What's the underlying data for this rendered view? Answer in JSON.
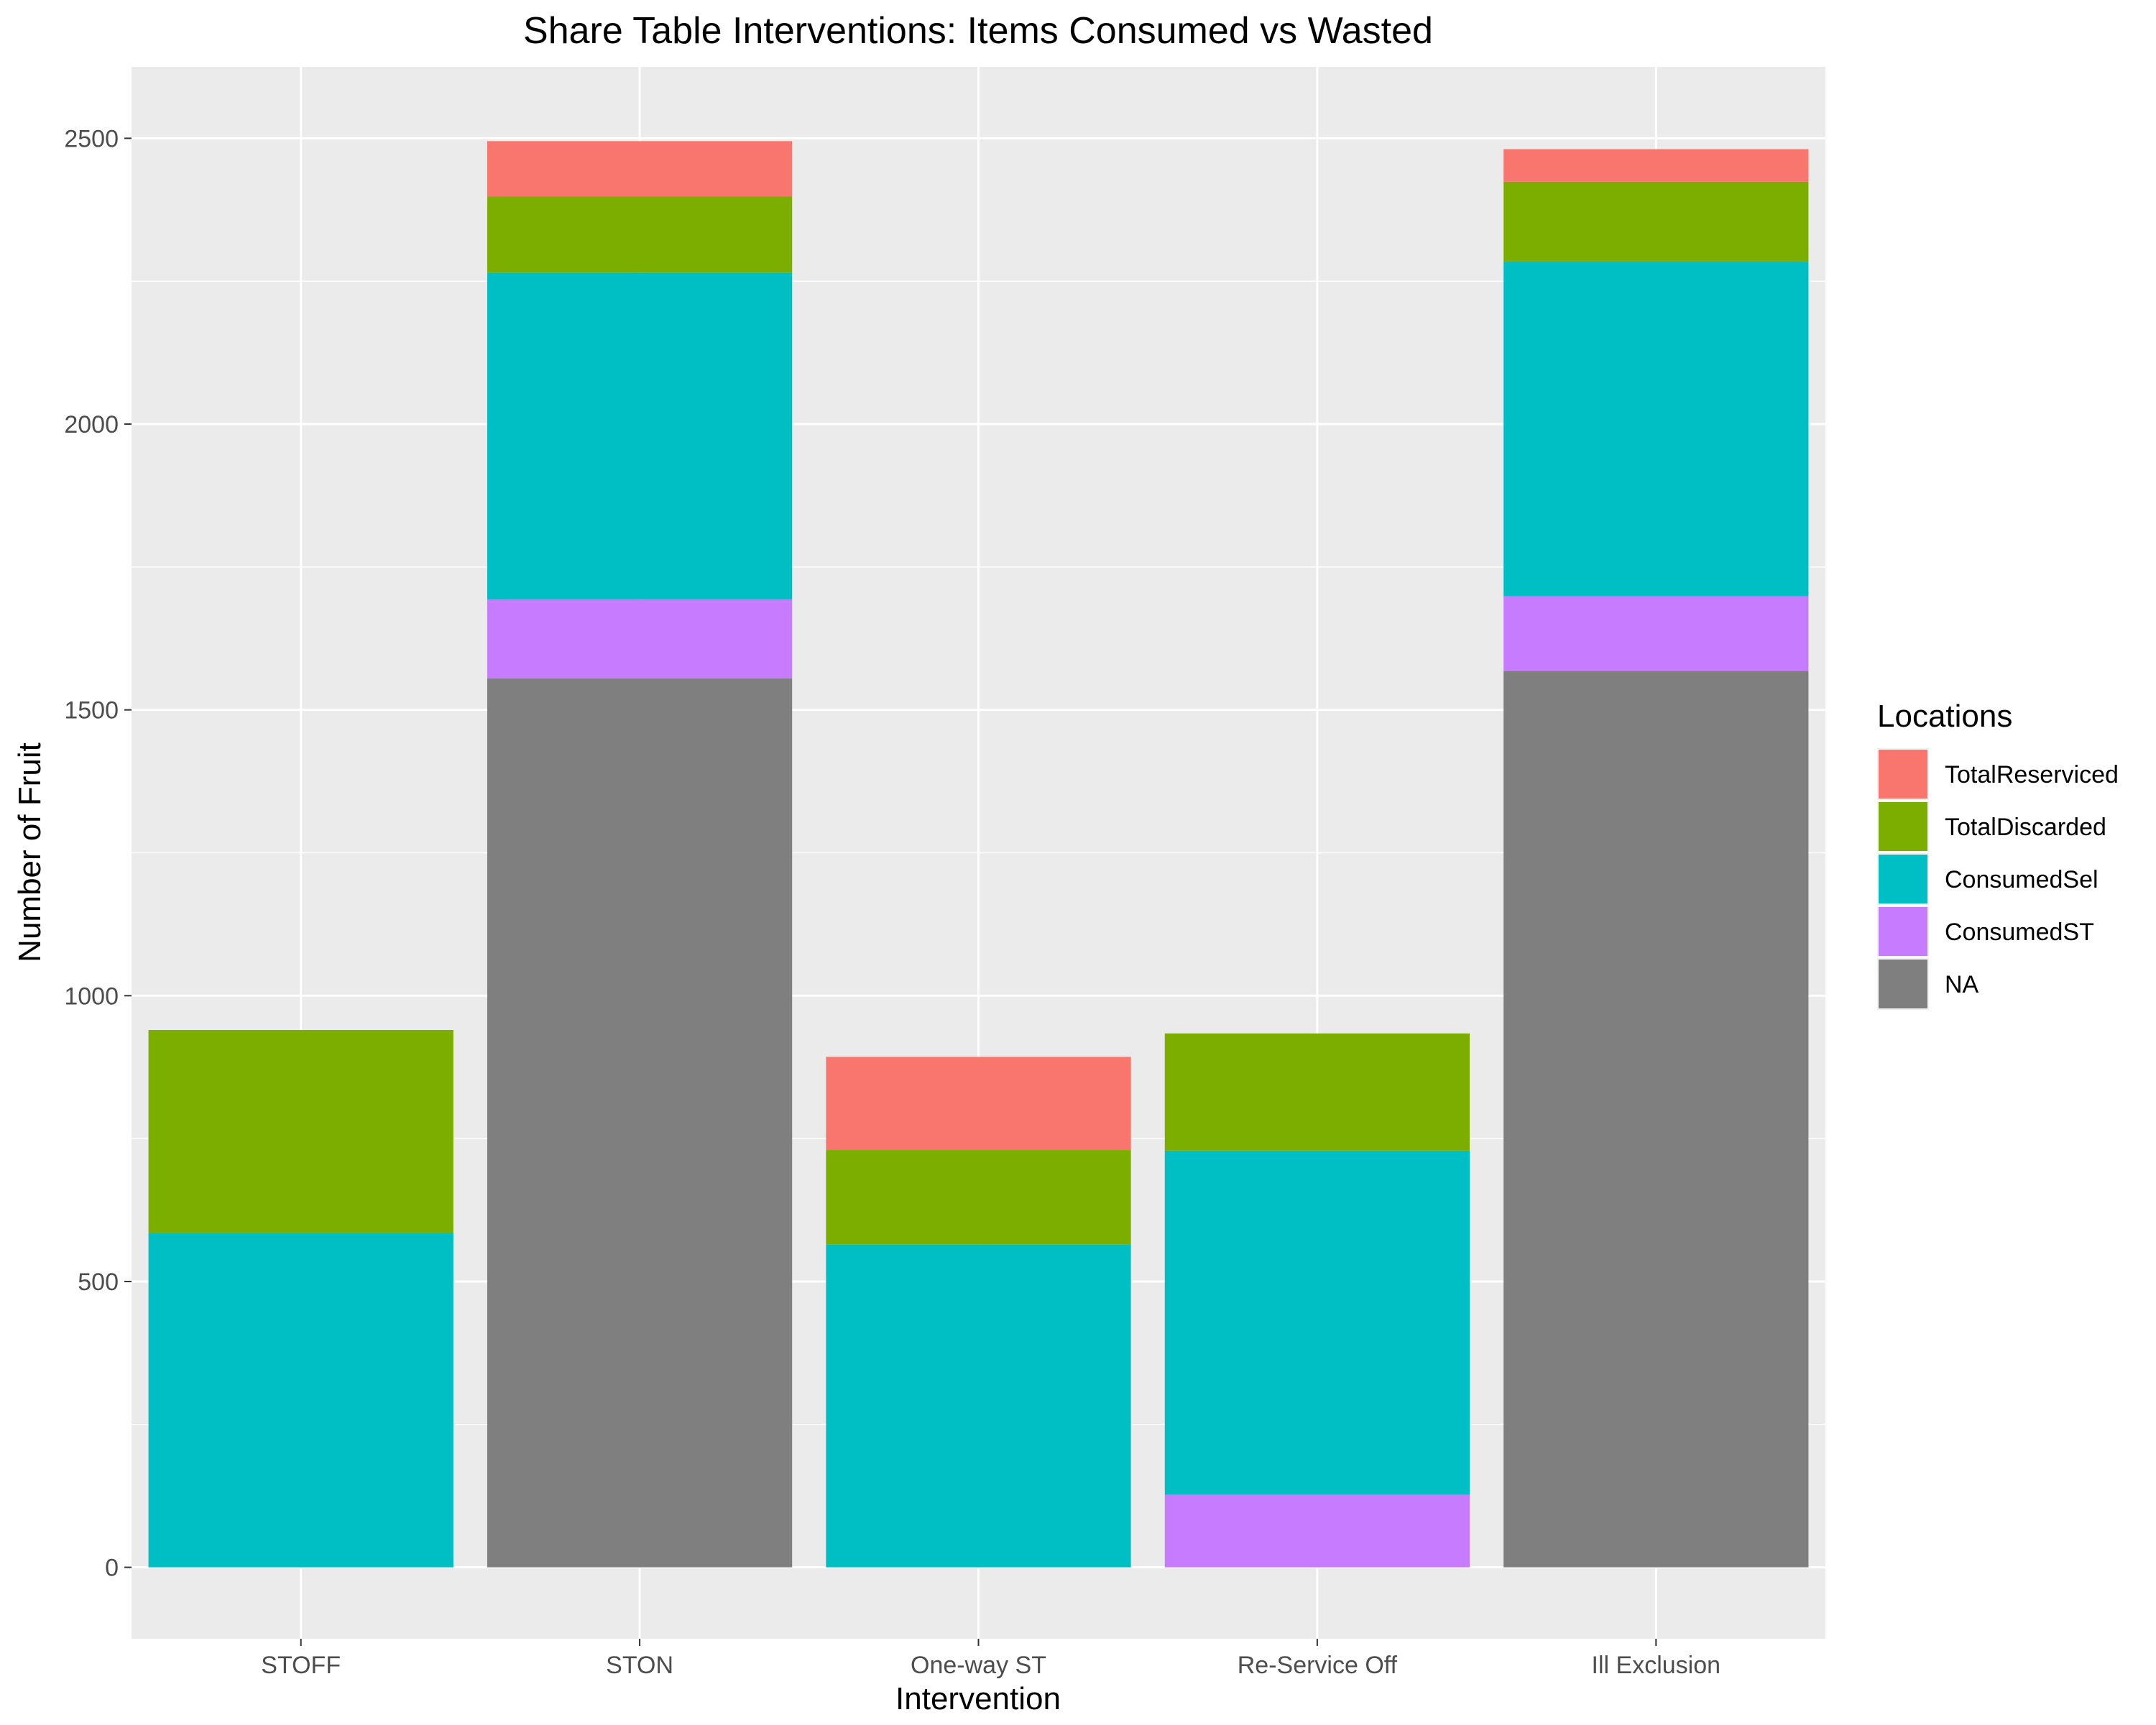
{
  "chart_data": {
    "type": "bar",
    "stacked": true,
    "title": "Share Table Interventions: Items Consumed vs Wasted",
    "xlabel": "Intervention",
    "ylabel": "Number of Fruit",
    "categories": [
      "STOFF",
      "STON",
      "One-way ST",
      "Re-Service Off",
      "Ill Exclusion"
    ],
    "ylim": [
      -125,
      2625
    ],
    "yticks": [
      0,
      500,
      1000,
      1500,
      2000,
      2500
    ],
    "grid": true,
    "background": "#EBEBEB",
    "legend": {
      "title": "Locations",
      "placement": "right"
    },
    "series": [
      {
        "name": "NA",
        "color": "#7F7F7F",
        "values": [
          0,
          1555,
          0,
          0,
          1568
        ]
      },
      {
        "name": "ConsumedST",
        "color": "#C77CFF",
        "values": [
          0,
          138,
          0,
          127,
          131
        ]
      },
      {
        "name": "ConsumedSel",
        "color": "#00BFC4",
        "values": [
          585,
          572,
          565,
          602,
          585
        ]
      },
      {
        "name": "TotalDiscarded",
        "color": "#7CAE00",
        "values": [
          355,
          133,
          165,
          205,
          140
        ]
      },
      {
        "name": "TotalReserviced",
        "color": "#F8766D",
        "values": [
          0,
          97,
          163,
          0,
          57
        ]
      }
    ],
    "legend_order": [
      "TotalReserviced",
      "TotalDiscarded",
      "ConsumedSel",
      "ConsumedST",
      "NA"
    ]
  }
}
